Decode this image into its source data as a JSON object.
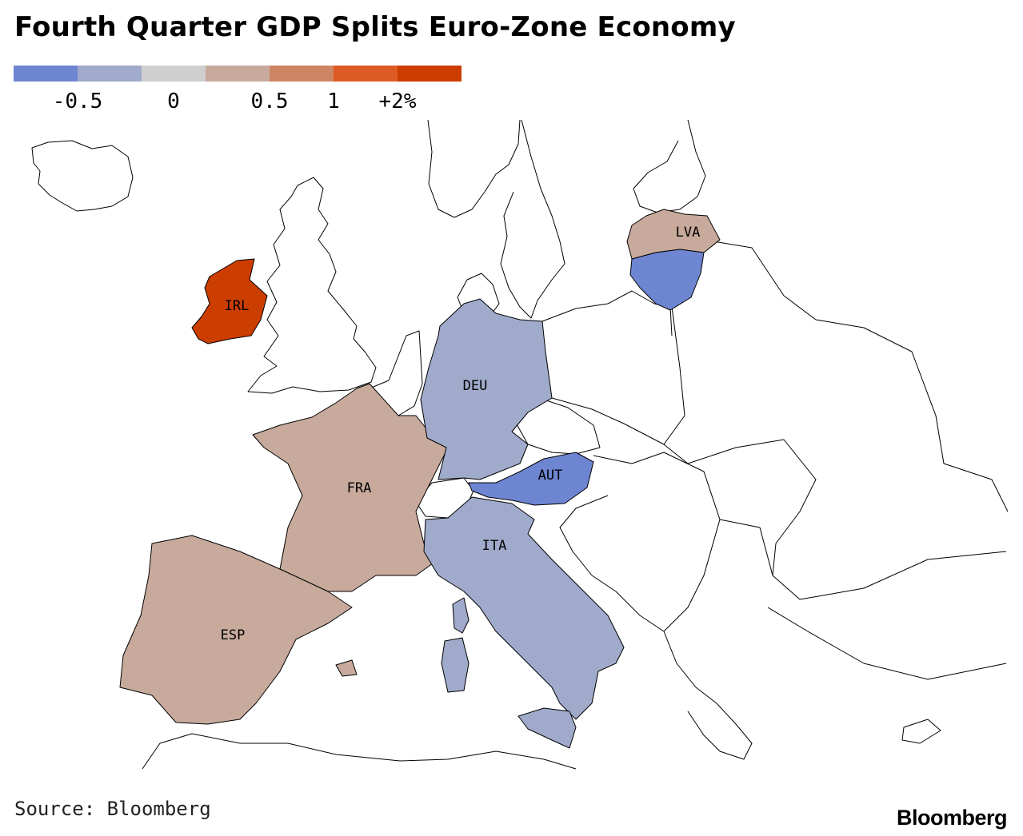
{
  "title": "Fourth Quarter GDP Splits Euro-Zone Economy",
  "legend": {
    "colors": [
      "#6e85d2",
      "#a0aacb",
      "#cfcfcf",
      "#c7aa9c",
      "#cd8563",
      "#de5a25",
      "#cc3d00"
    ],
    "ticks": [
      "-0.5",
      "0",
      "0.5",
      "1",
      "+2%"
    ]
  },
  "countries": [
    {
      "code": "IRL",
      "label": "IRL",
      "color": "#cc3d00"
    },
    {
      "code": "FRA",
      "label": "FRA",
      "color": "#c7aa9c"
    },
    {
      "code": "ESP",
      "label": "ESP",
      "color": "#c7aa9c"
    },
    {
      "code": "LVA",
      "label": "LVA",
      "color": "#c7aa9c"
    },
    {
      "code": "DEU",
      "label": "DEU",
      "color": "#a0aacb"
    },
    {
      "code": "ITA",
      "label": "ITA",
      "color": "#a0aacb"
    },
    {
      "code": "AUT",
      "label": "AUT",
      "color": "#6e85d2"
    },
    {
      "code": "LTU",
      "label": "",
      "color": "#6e85d2"
    }
  ],
  "source": "Source: Bloomberg",
  "logo": "Bloomberg"
}
